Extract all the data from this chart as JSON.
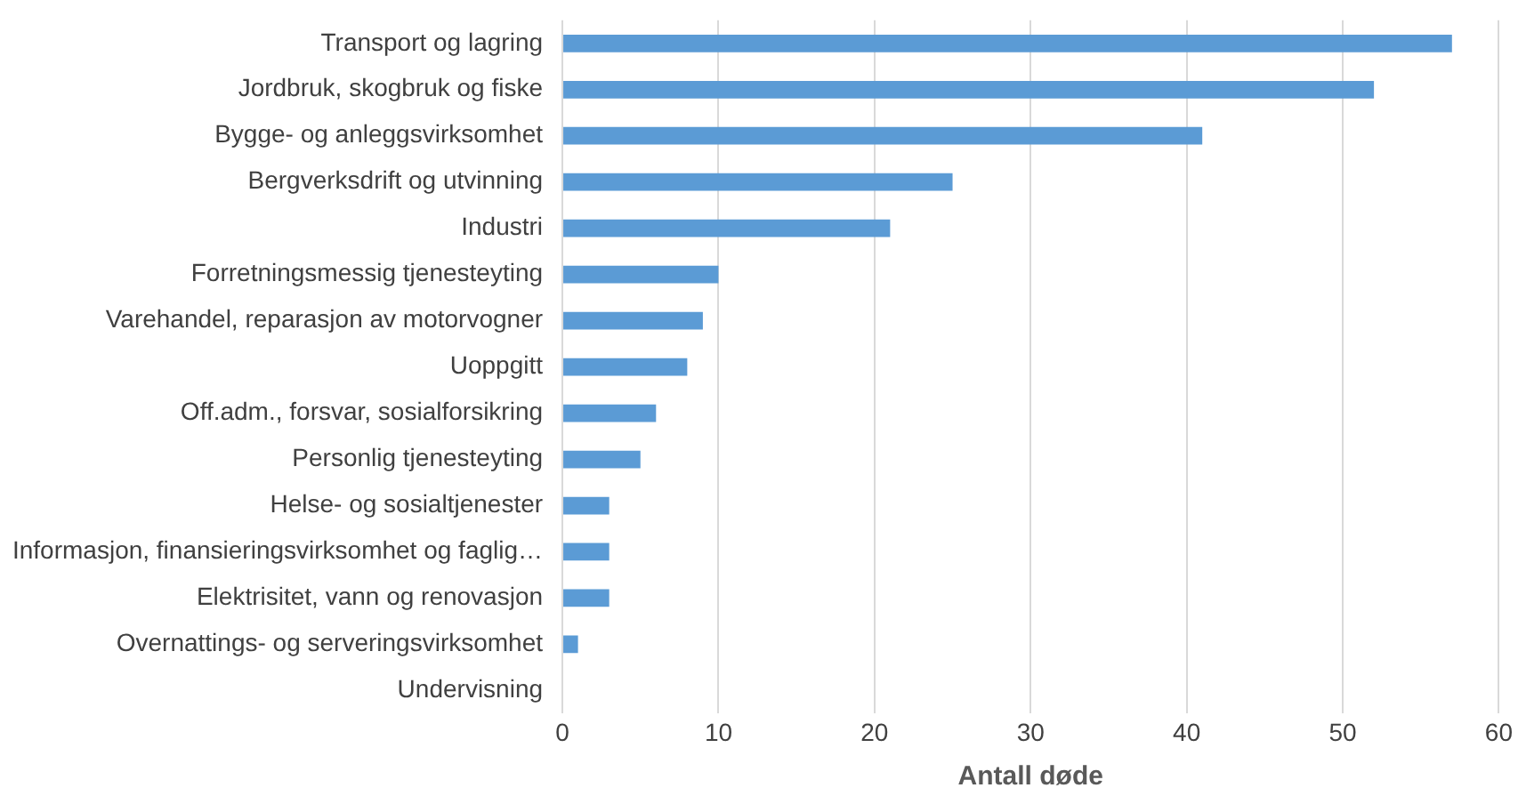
{
  "chart_data": {
    "type": "bar",
    "orientation": "horizontal",
    "xlabel": "Antall døde",
    "categories": [
      "Transport og lagring",
      "Jordbruk, skogbruk og fiske",
      "Bygge- og anleggsvirksomhet",
      "Bergverksdrift og utvinning",
      "Industri",
      "Forretningsmessig tjenesteyting",
      "Varehandel, reparasjon av motorvogner",
      "Uoppgitt",
      "Off.adm., forsvar, sosialforsikring",
      "Personlig tjenesteyting",
      "Helse- og sosialtjenester",
      "Informasjon, finansieringsvirksomhet og faglig…",
      "Elektrisitet, vann og renovasjon",
      "Overnattings- og serveringsvirksomhet",
      "Undervisning"
    ],
    "values": [
      57,
      52,
      41,
      25,
      21,
      10,
      9,
      8,
      6,
      5,
      3,
      3,
      3,
      1,
      0
    ],
    "color": "#5b9bd5",
    "xlim": [
      0,
      60
    ],
    "xticks": [
      0,
      10,
      20,
      30,
      40,
      50,
      60
    ],
    "grid": "x",
    "legend": false
  }
}
